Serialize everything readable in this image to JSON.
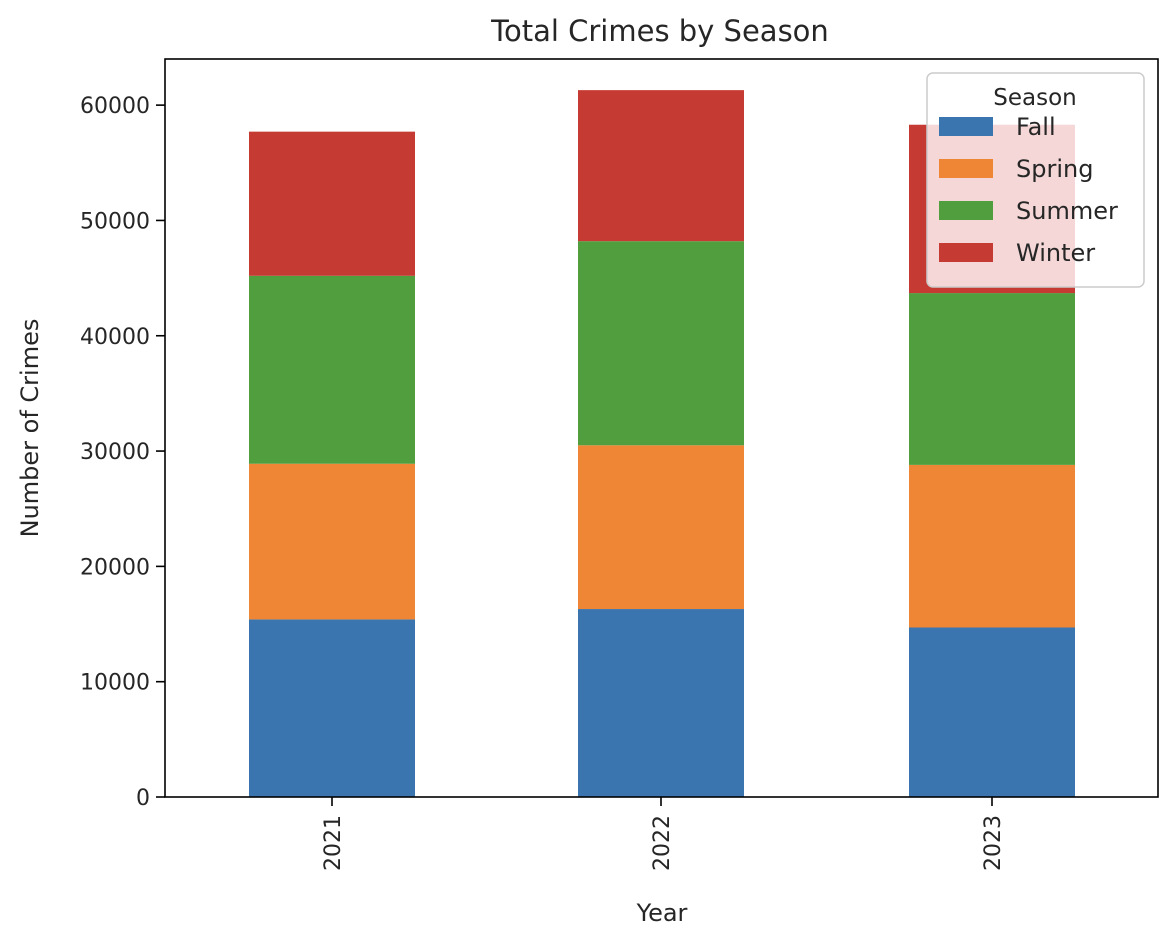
{
  "chart_data": {
    "type": "bar",
    "stacked": true,
    "title": "Total Crimes by Season",
    "xlabel": "Year",
    "ylabel": "Number of Crimes",
    "categories": [
      "2021",
      "2022",
      "2023"
    ],
    "ylim": [
      0,
      64000
    ],
    "yticks": [
      0,
      10000,
      20000,
      30000,
      40000,
      50000,
      60000
    ],
    "yticklabels": [
      "0",
      "10000",
      "20000",
      "30000",
      "40000",
      "50000",
      "60000"
    ],
    "grid": false,
    "legend": {
      "title": "Season",
      "placement": "top-right"
    },
    "series": [
      {
        "name": "Fall",
        "color": "#3a75af",
        "values": [
          15400,
          16300,
          14700
        ]
      },
      {
        "name": "Spring",
        "color": "#ef8636",
        "values": [
          13500,
          14200,
          14100
        ]
      },
      {
        "name": "Summer",
        "color": "#519e3e",
        "values": [
          16300,
          17700,
          14900
        ]
      },
      {
        "name": "Winter",
        "color": "#c53a32",
        "values": [
          12500,
          13100,
          14600
        ]
      }
    ]
  }
}
